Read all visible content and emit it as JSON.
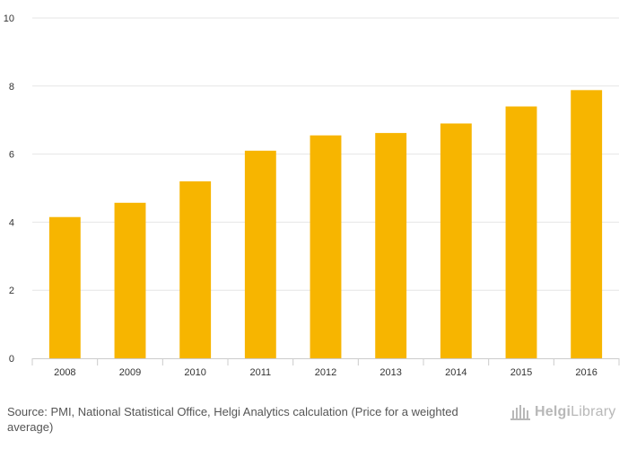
{
  "chart_data": {
    "type": "bar",
    "categories": [
      "2008",
      "2009",
      "2010",
      "2011",
      "2012",
      "2013",
      "2014",
      "2015",
      "2016"
    ],
    "values": [
      4.15,
      4.57,
      5.2,
      6.1,
      6.55,
      6.62,
      6.9,
      7.4,
      7.88
    ],
    "ylim": [
      0,
      10
    ],
    "yticks": [
      0,
      2,
      4,
      6,
      8,
      10
    ],
    "grid": true,
    "bar_color": "#f7b500",
    "title": "",
    "xlabel": "",
    "ylabel": ""
  },
  "footer": {
    "source_label": "Source:",
    "source_text": "PMI, National Statistical Office, Helgi Analytics calculation (Price for a weighted average)"
  },
  "logo": {
    "name_bold": "Helgi",
    "name_light": "Library"
  },
  "colors": {
    "grid": "#e6e6e6",
    "axis": "#cccccc",
    "logo": "#b8b8b8"
  }
}
